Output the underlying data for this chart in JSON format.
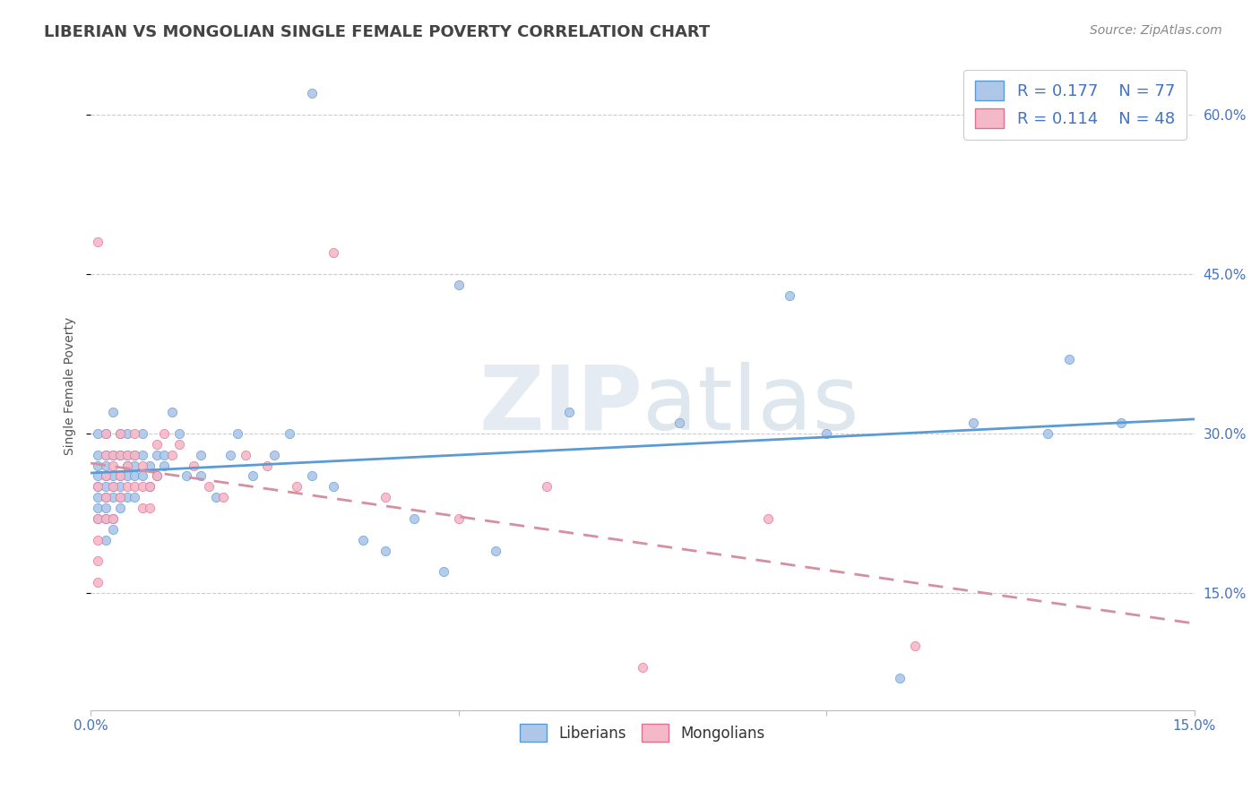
{
  "title": "LIBERIAN VS MONGOLIAN SINGLE FEMALE POVERTY CORRELATION CHART",
  "source": "Source: ZipAtlas.com",
  "ylabel": "Single Female Poverty",
  "xmin": 0.0,
  "xmax": 0.15,
  "ymin": 0.04,
  "ymax": 0.65,
  "yticks": [
    0.15,
    0.3,
    0.45,
    0.6
  ],
  "xticks": [
    0.0,
    0.05,
    0.1,
    0.15
  ],
  "xtick_labels": [
    "0.0%",
    "",
    "",
    "15.0%"
  ],
  "liberian_color": "#aec6e8",
  "liberian_edge": "#5b9bd5",
  "mongolian_color": "#f4b8c8",
  "mongolian_edge": "#e07090",
  "liberian_trend_color": "#5b9bd5",
  "mongolian_trend_color": "#d48fa0",
  "liberian_R": 0.177,
  "liberian_N": 77,
  "mongolian_R": 0.114,
  "mongolian_N": 48,
  "liberian_x": [
    0.001,
    0.001,
    0.001,
    0.001,
    0.001,
    0.001,
    0.001,
    0.001,
    0.002,
    0.002,
    0.002,
    0.002,
    0.002,
    0.002,
    0.002,
    0.002,
    0.002,
    0.003,
    0.003,
    0.003,
    0.003,
    0.003,
    0.003,
    0.003,
    0.004,
    0.004,
    0.004,
    0.004,
    0.004,
    0.004,
    0.005,
    0.005,
    0.005,
    0.005,
    0.005,
    0.006,
    0.006,
    0.006,
    0.006,
    0.007,
    0.007,
    0.007,
    0.008,
    0.008,
    0.009,
    0.009,
    0.01,
    0.01,
    0.011,
    0.012,
    0.013,
    0.015,
    0.015,
    0.017,
    0.019,
    0.02,
    0.022,
    0.025,
    0.027,
    0.03,
    0.033,
    0.037,
    0.04,
    0.044,
    0.048,
    0.055,
    0.065,
    0.08,
    0.1,
    0.12,
    0.13,
    0.133,
    0.14,
    0.03,
    0.05,
    0.095,
    0.11
  ],
  "liberian_y": [
    0.25,
    0.27,
    0.26,
    0.24,
    0.22,
    0.28,
    0.3,
    0.23,
    0.28,
    0.26,
    0.25,
    0.24,
    0.22,
    0.3,
    0.2,
    0.27,
    0.23,
    0.28,
    0.26,
    0.25,
    0.24,
    0.22,
    0.32,
    0.21,
    0.3,
    0.28,
    0.26,
    0.25,
    0.24,
    0.23,
    0.3,
    0.28,
    0.27,
    0.26,
    0.24,
    0.28,
    0.27,
    0.26,
    0.24,
    0.3,
    0.28,
    0.26,
    0.27,
    0.25,
    0.28,
    0.26,
    0.28,
    0.27,
    0.32,
    0.3,
    0.26,
    0.28,
    0.26,
    0.24,
    0.28,
    0.3,
    0.26,
    0.28,
    0.3,
    0.26,
    0.25,
    0.2,
    0.19,
    0.22,
    0.17,
    0.19,
    0.32,
    0.31,
    0.3,
    0.31,
    0.3,
    0.37,
    0.31,
    0.62,
    0.44,
    0.43,
    0.07
  ],
  "mongolian_x": [
    0.001,
    0.001,
    0.001,
    0.001,
    0.001,
    0.001,
    0.002,
    0.002,
    0.002,
    0.002,
    0.002,
    0.003,
    0.003,
    0.003,
    0.003,
    0.004,
    0.004,
    0.004,
    0.004,
    0.005,
    0.005,
    0.005,
    0.006,
    0.006,
    0.006,
    0.007,
    0.007,
    0.007,
    0.008,
    0.008,
    0.009,
    0.009,
    0.01,
    0.011,
    0.012,
    0.014,
    0.016,
    0.018,
    0.021,
    0.024,
    0.028,
    0.033,
    0.04,
    0.05,
    0.062,
    0.075,
    0.092,
    0.112
  ],
  "mongolian_y": [
    0.48,
    0.22,
    0.2,
    0.18,
    0.16,
    0.25,
    0.3,
    0.28,
    0.26,
    0.24,
    0.22,
    0.28,
    0.27,
    0.25,
    0.22,
    0.3,
    0.28,
    0.26,
    0.24,
    0.28,
    0.27,
    0.25,
    0.3,
    0.28,
    0.25,
    0.27,
    0.25,
    0.23,
    0.25,
    0.23,
    0.29,
    0.26,
    0.3,
    0.28,
    0.29,
    0.27,
    0.25,
    0.24,
    0.28,
    0.27,
    0.25,
    0.47,
    0.24,
    0.22,
    0.25,
    0.08,
    0.22,
    0.1
  ]
}
